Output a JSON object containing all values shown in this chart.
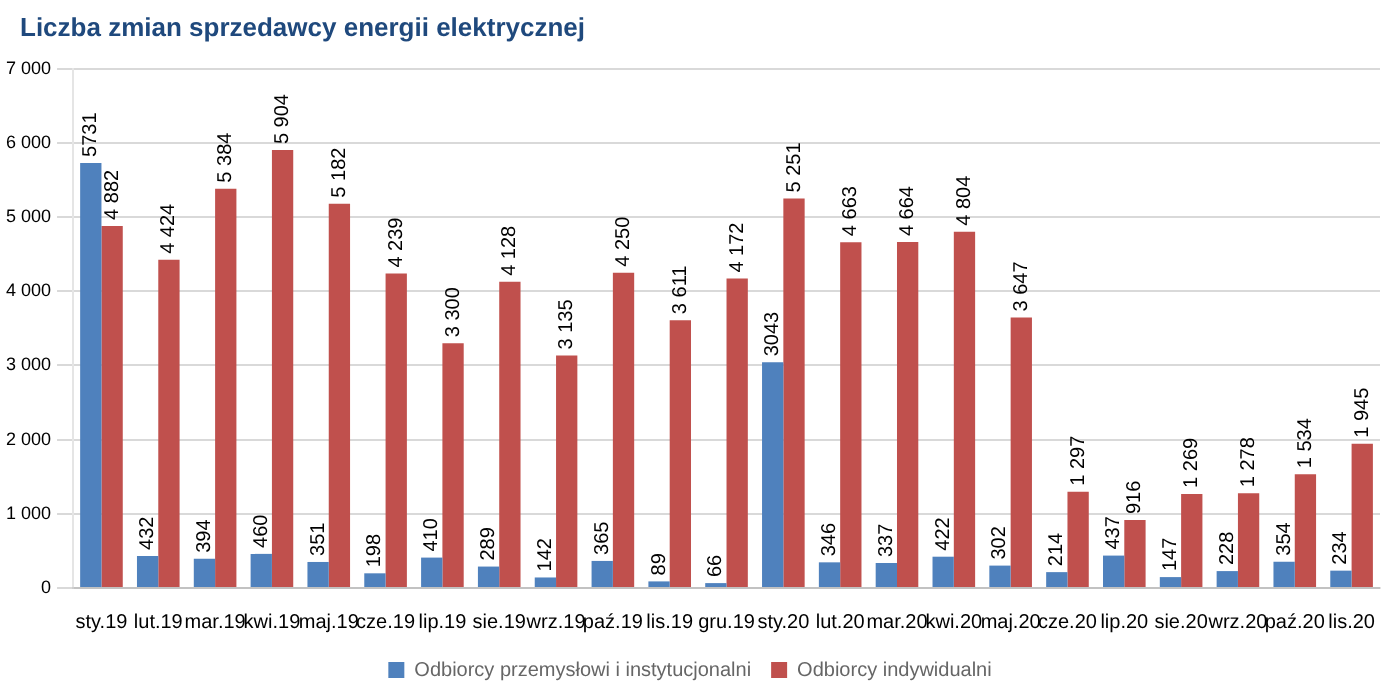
{
  "chart_data": {
    "type": "bar",
    "title": "Liczba zmian sprzedawcy energii elektrycznej",
    "categories": [
      "sty.19",
      "lut.19",
      "mar.19",
      "kwi.19",
      "maj.19",
      "cze.19",
      "lip.19",
      "sie.19",
      "wrz.19",
      "paź.19",
      "lis.19",
      "gru.19",
      "sty.20",
      "lut.20",
      "mar.20",
      "kwi.20",
      "maj.20",
      "cze.20",
      "lip.20",
      "sie.20",
      "wrz.20",
      "paź.20",
      "lis.20"
    ],
    "series": [
      {
        "name": "Odbiorcy przemysłowi i instytucjonalni",
        "color": "#4f81bd",
        "values": [
          5731,
          432,
          394,
          460,
          351,
          198,
          410,
          289,
          142,
          365,
          89,
          66,
          3043,
          346,
          337,
          422,
          302,
          214,
          437,
          147,
          228,
          354,
          234
        ],
        "value_labels": [
          "5731",
          "432",
          "394",
          "460",
          "351",
          "198",
          "410",
          "289",
          "142",
          "365",
          "89",
          "66",
          "3043",
          "346",
          "337",
          "422",
          "302",
          "214",
          "437",
          "147",
          "228",
          "354",
          "234"
        ]
      },
      {
        "name": "Odbiorcy indywidualni",
        "color": "#c0504d",
        "values": [
          4882,
          4424,
          5384,
          5904,
          5182,
          4239,
          3300,
          4128,
          3135,
          4250,
          3611,
          4172,
          5251,
          4663,
          4664,
          4804,
          3647,
          1297,
          916,
          1269,
          1278,
          1534,
          1945
        ],
        "value_labels": [
          "4 882",
          "4 424",
          "5 384",
          "5 904",
          "5 182",
          "4 239",
          "3 300",
          "4 128",
          "3 135",
          "4 250",
          "3 611",
          "4 172",
          "5 251",
          "4 663",
          "4 664",
          "4 804",
          "3 647",
          "1 297",
          "916",
          "1 269",
          "1 278",
          "1 534",
          "1 945"
        ]
      }
    ],
    "ylim": [
      0,
      7000
    ],
    "yticks": [
      0,
      {
        "value": 1000,
        "label": "1 000"
      },
      {
        "value": 2000,
        "label": "2 000"
      },
      {
        "value": 3000,
        "label": "3 000"
      },
      {
        "value": 4000,
        "label": "4 000"
      },
      {
        "value": 5000,
        "label": "5 000"
      },
      {
        "value": 6000,
        "label": "6 000"
      },
      {
        "value": 7000,
        "label": "7 000"
      }
    ],
    "grid": "y",
    "legend": "bottom"
  }
}
